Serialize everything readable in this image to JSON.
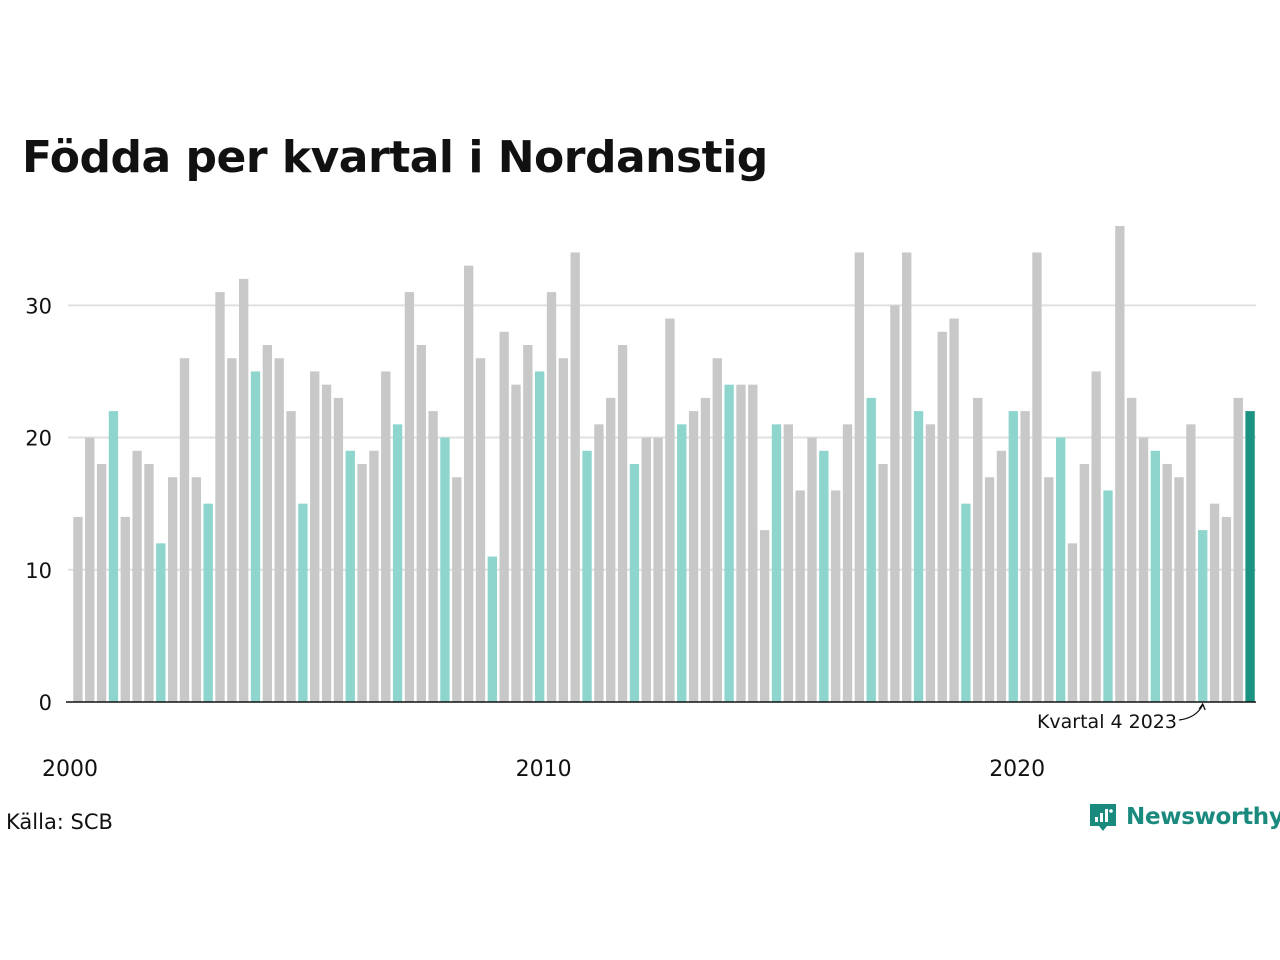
{
  "header": {
    "title": "Födda per kvartal i Nordanstig"
  },
  "footer": {
    "source": "Källa: SCB"
  },
  "logo": {
    "text": "Newsworthy",
    "icon": "newsworthy-logo-icon"
  },
  "colors": {
    "bar_default": "#c8c8c8",
    "bar_quarter4": "#8dd5cd",
    "bar_latest": "#1a9383",
    "grid": "#e0e0e0",
    "axis": "#111111",
    "brand": "#1a8a7e"
  },
  "chart_data": {
    "type": "bar",
    "title": "Födda per kvartal i Nordanstig",
    "xlabel": "",
    "ylabel": "",
    "ylim": [
      0,
      36
    ],
    "yticks": [
      0,
      10,
      20,
      30
    ],
    "grid": true,
    "xtick_labels": [
      "2000",
      "2010",
      "2020"
    ],
    "annotation": {
      "text": "Kvartal 4 2023",
      "target": "2023 Q4"
    },
    "quarters_per_year": 4,
    "first_period": "2000 Q1",
    "last_period": "2024 Q4",
    "highlight": "Q4 bars in teal, latest bar in dark teal",
    "values": [
      14,
      20,
      18,
      22,
      14,
      19,
      18,
      12,
      17,
      26,
      17,
      15,
      31,
      26,
      32,
      25,
      27,
      26,
      22,
      15,
      25,
      24,
      23,
      19,
      18,
      19,
      25,
      21,
      31,
      27,
      22,
      20,
      17,
      33,
      26,
      11,
      28,
      24,
      27,
      25,
      31,
      26,
      34,
      19,
      21,
      23,
      27,
      18,
      20,
      20,
      29,
      21,
      22,
      23,
      26,
      24,
      24,
      24,
      13,
      21,
      21,
      16,
      20,
      19,
      16,
      21,
      34,
      23,
      18,
      30,
      34,
      22,
      21,
      28,
      29,
      15,
      23,
      17,
      19,
      22,
      22,
      34,
      17,
      20,
      12,
      18,
      25,
      16,
      36,
      23,
      20,
      19,
      18,
      17,
      21,
      13,
      15,
      14,
      23,
      22
    ]
  }
}
